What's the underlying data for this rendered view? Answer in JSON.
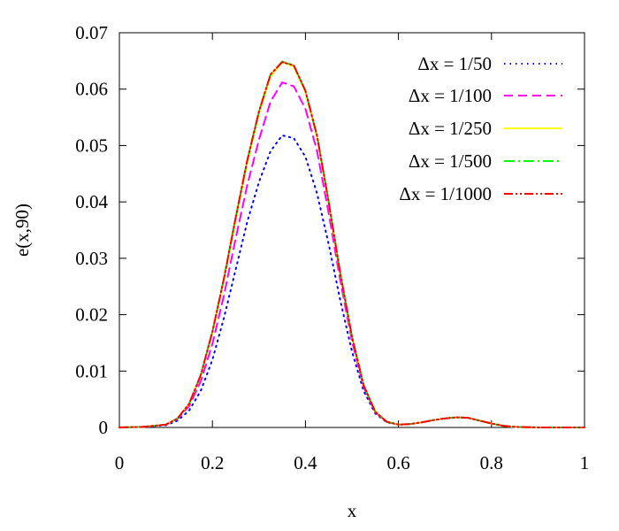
{
  "chart_data": {
    "type": "line",
    "title": "",
    "xlabel": "x",
    "ylabel": "e(x,90)",
    "xlim": [
      0,
      1
    ],
    "ylim": [
      0,
      0.07
    ],
    "xticks": [
      "0",
      "0.2",
      "0.4",
      "0.6",
      "0.8",
      "1"
    ],
    "yticks": [
      "0",
      "0.01",
      "0.02",
      "0.03",
      "0.04",
      "0.05",
      "0.06",
      "0.07"
    ],
    "grid": false,
    "legend_position": "top-right",
    "x": [
      0,
      0.05,
      0.1,
      0.125,
      0.15,
      0.175,
      0.2,
      0.225,
      0.25,
      0.275,
      0.3,
      0.325,
      0.35,
      0.375,
      0.4,
      0.425,
      0.45,
      0.475,
      0.5,
      0.525,
      0.55,
      0.575,
      0.6,
      0.625,
      0.65,
      0.675,
      0.7,
      0.725,
      0.75,
      0.775,
      0.8,
      0.825,
      0.85,
      0.9,
      0.95,
      1.0
    ],
    "series": [
      {
        "name": "Δx = 1/50",
        "color": "#0000ff",
        "dash": "dot",
        "values": [
          0,
          0.0001,
          0.0004,
          0.0012,
          0.003,
          0.0065,
          0.012,
          0.0195,
          0.028,
          0.0365,
          0.0435,
          0.049,
          0.0518,
          0.0513,
          0.048,
          0.0415,
          0.0325,
          0.0225,
          0.0135,
          0.0065,
          0.0025,
          0.0009,
          0.0005,
          0.0006,
          0.0009,
          0.0013,
          0.0016,
          0.0018,
          0.0017,
          0.0012,
          0.0007,
          0.0003,
          0.0001,
          0,
          0,
          0
        ]
      },
      {
        "name": "Δx = 1/100",
        "color": "#ff00ff",
        "dash": "dash",
        "values": [
          0,
          0.0001,
          0.0005,
          0.0015,
          0.0038,
          0.0082,
          0.0148,
          0.0235,
          0.0335,
          0.043,
          0.051,
          0.0578,
          0.0612,
          0.0605,
          0.0565,
          0.049,
          0.038,
          0.026,
          0.0153,
          0.0072,
          0.0027,
          0.001,
          0.0005,
          0.0006,
          0.0009,
          0.0013,
          0.0016,
          0.0018,
          0.0017,
          0.0012,
          0.0007,
          0.0003,
          0.0001,
          0,
          0,
          0
        ]
      },
      {
        "name": "Δx = 1/250",
        "color": "#ffff00",
        "dash": "solid",
        "values": [
          0,
          0.0001,
          0.0005,
          0.0016,
          0.0042,
          0.0092,
          0.0168,
          0.0262,
          0.0368,
          0.047,
          0.0557,
          0.0623,
          0.0648,
          0.064,
          0.0595,
          0.0515,
          0.0398,
          0.0272,
          0.016,
          0.0075,
          0.0028,
          0.001,
          0.0005,
          0.0006,
          0.0009,
          0.0013,
          0.0016,
          0.0018,
          0.0017,
          0.0012,
          0.0007,
          0.0003,
          0.0001,
          0,
          0,
          0
        ]
      },
      {
        "name": "Δx = 1/500",
        "color": "#00ff00",
        "dash": "dashdot",
        "values": [
          0,
          0.0001,
          0.0005,
          0.0016,
          0.0042,
          0.0093,
          0.017,
          0.0265,
          0.0372,
          0.0474,
          0.056,
          0.0626,
          0.0649,
          0.0642,
          0.0597,
          0.0517,
          0.04,
          0.0273,
          0.0161,
          0.0075,
          0.0028,
          0.001,
          0.0005,
          0.0006,
          0.0009,
          0.0013,
          0.0016,
          0.0018,
          0.0017,
          0.0012,
          0.0007,
          0.0003,
          0.0001,
          0,
          0,
          0
        ]
      },
      {
        "name": "Δx = 1/1000",
        "color": "#ff0000",
        "dash": "dashdotdot",
        "values": [
          0,
          0.0001,
          0.0005,
          0.0016,
          0.0042,
          0.0093,
          0.017,
          0.0265,
          0.0372,
          0.0474,
          0.056,
          0.0626,
          0.0648,
          0.0642,
          0.0597,
          0.0517,
          0.04,
          0.0273,
          0.0161,
          0.0075,
          0.0028,
          0.001,
          0.0005,
          0.0006,
          0.0009,
          0.0013,
          0.0016,
          0.0018,
          0.0017,
          0.0012,
          0.0007,
          0.0003,
          0.0001,
          0,
          0,
          0
        ]
      }
    ]
  }
}
